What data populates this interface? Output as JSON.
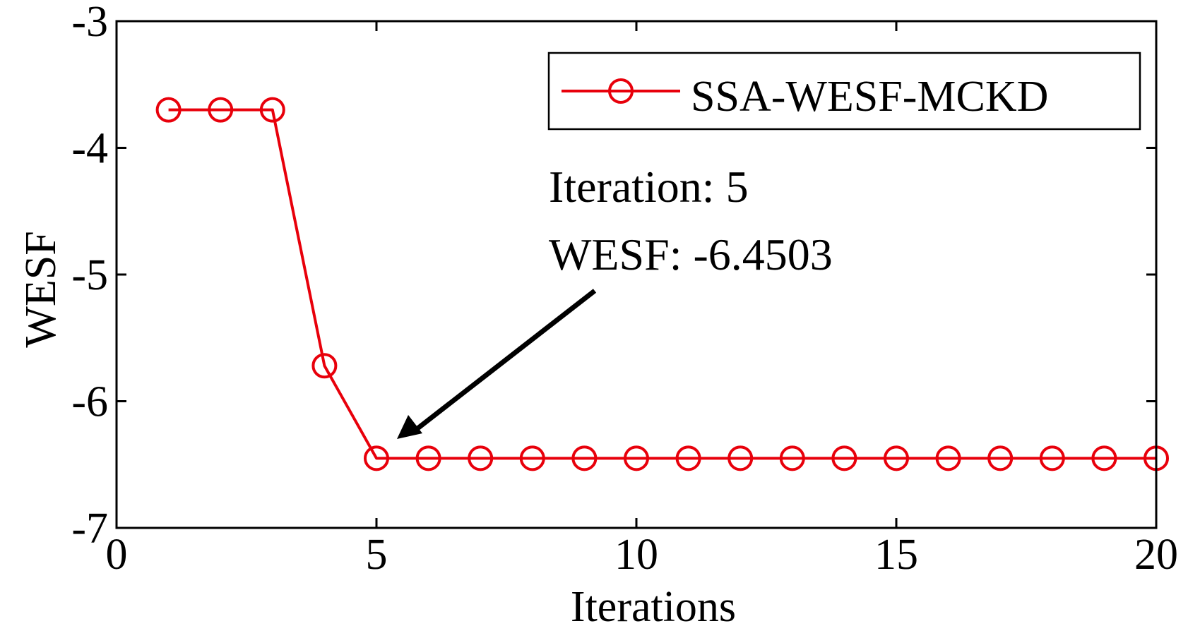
{
  "chart_data": {
    "type": "line",
    "title": "",
    "xlabel": "Iterations",
    "ylabel": "WESF",
    "xlim": [
      0,
      20
    ],
    "ylim": [
      -7,
      -3
    ],
    "xticks": [
      0,
      5,
      10,
      15,
      20
    ],
    "yticks": [
      -3,
      -4,
      -5,
      -6,
      -7
    ],
    "grid": false,
    "legend_position": "top-right",
    "series": [
      {
        "name": "SSA-WESF-MCKD",
        "color": "#e8000b",
        "marker": "circle",
        "x": [
          1,
          2,
          3,
          4,
          5,
          6,
          7,
          8,
          9,
          10,
          11,
          12,
          13,
          14,
          15,
          16,
          17,
          18,
          19,
          20
        ],
        "y": [
          -3.7,
          -3.7,
          -3.7,
          -5.72,
          -6.4503,
          -6.4503,
          -6.4503,
          -6.4503,
          -6.4503,
          -6.4503,
          -6.4503,
          -6.4503,
          -6.4503,
          -6.4503,
          -6.4503,
          -6.4503,
          -6.4503,
          -6.4503,
          -6.4503,
          -6.4503
        ]
      }
    ],
    "annotation": {
      "lines": [
        "Iteration: 5",
        "WESF: -6.4503"
      ],
      "point": [
        5,
        -6.4503
      ]
    }
  }
}
